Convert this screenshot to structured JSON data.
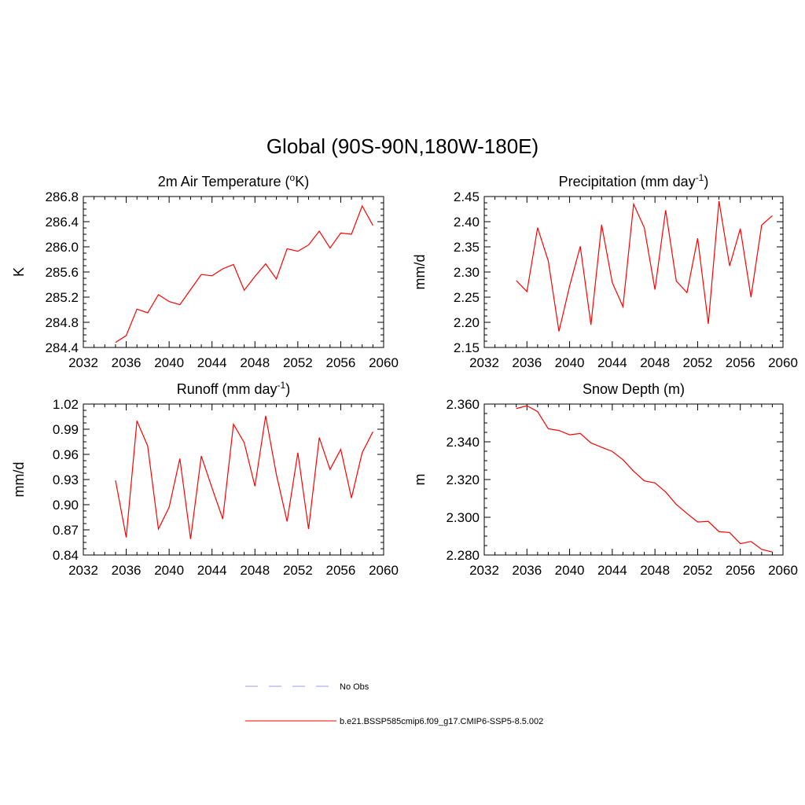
{
  "figure": {
    "title": "Global (90S-90N,180W-180E)"
  },
  "colors": {
    "model_line": "#ff0000",
    "obs_line": "#9999ee",
    "axis": "#000000",
    "background": "#ffffff"
  },
  "legend": {
    "placement": "bottom-center",
    "entries": [
      {
        "label": "No Obs",
        "style": "dashed",
        "color": "#9999ee"
      },
      {
        "label": "b.e21.BSSP585cmip6.f09_g17.CMIP6-SSP5-8.5.002",
        "style": "solid",
        "color": "#ff0000"
      }
    ]
  },
  "chart_data": [
    {
      "type": "line",
      "title": "2m Air Temperature (°K)",
      "title_parts": {
        "pre": "2m Air Temperature (",
        "sup": "o",
        "post": "K)"
      },
      "ylabel": "K",
      "xlim": [
        2032,
        2060
      ],
      "ylim": [
        284.4,
        286.8
      ],
      "xticks": [
        2032,
        2036,
        2040,
        2044,
        2048,
        2052,
        2056,
        2060
      ],
      "xticklabels": [
        "2032",
        "2036",
        "2040",
        "2044",
        "2048",
        "2052",
        "2056",
        "2060"
      ],
      "yticks": [
        284.4,
        284.8,
        285.2,
        285.6,
        286.0,
        286.4,
        286.8
      ],
      "yticklabels": [
        "284.4",
        "284.8",
        "285.2",
        "285.6",
        "286.0",
        "286.4",
        "286.8"
      ],
      "grid": false,
      "series": [
        {
          "color": "#ff0000",
          "x": [
            2035,
            2036,
            2037,
            2038,
            2039,
            2040,
            2041,
            2042,
            2043,
            2044,
            2045,
            2046,
            2047,
            2048,
            2049,
            2050,
            2051,
            2052,
            2053,
            2054,
            2055,
            2056,
            2057,
            2058,
            2059
          ],
          "y": [
            284.48,
            284.59,
            285.01,
            284.95,
            285.24,
            285.13,
            285.08,
            285.32,
            285.56,
            285.54,
            285.65,
            285.72,
            285.31,
            285.53,
            285.73,
            285.49,
            285.97,
            285.93,
            286.03,
            286.25,
            285.98,
            286.22,
            286.2,
            286.65,
            286.34
          ]
        }
      ]
    },
    {
      "type": "line",
      "title": "Precipitation (mm day⁻¹)",
      "title_parts": {
        "pre": "Precipitation (mm day",
        "sup": "-1",
        "post": ")"
      },
      "ylabel": "mm/d",
      "xlim": [
        2032,
        2060
      ],
      "ylim": [
        2.15,
        2.45
      ],
      "xticks": [
        2032,
        2036,
        2040,
        2044,
        2048,
        2052,
        2056,
        2060
      ],
      "xticklabels": [
        "2032",
        "2036",
        "2040",
        "2044",
        "2048",
        "2052",
        "2056",
        "2060"
      ],
      "yticks": [
        2.15,
        2.2,
        2.25,
        2.3,
        2.35,
        2.4,
        2.45
      ],
      "yticklabels": [
        "2.15",
        "2.20",
        "2.25",
        "2.30",
        "2.35",
        "2.40",
        "2.45"
      ],
      "grid": false,
      "series": [
        {
          "color": "#ff0000",
          "x": [
            2035,
            2036,
            2037,
            2038,
            2039,
            2040,
            2041,
            2042,
            2043,
            2044,
            2045,
            2046,
            2047,
            2048,
            2049,
            2050,
            2051,
            2052,
            2053,
            2054,
            2055,
            2056,
            2057,
            2058,
            2059
          ],
          "y": [
            2.283,
            2.261,
            2.388,
            2.322,
            2.182,
            2.272,
            2.351,
            2.195,
            2.394,
            2.279,
            2.231,
            2.435,
            2.388,
            2.265,
            2.423,
            2.282,
            2.259,
            2.367,
            2.197,
            2.441,
            2.312,
            2.386,
            2.25,
            2.393,
            2.412
          ]
        }
      ]
    },
    {
      "type": "line",
      "title": "Runoff (mm day⁻¹)",
      "title_parts": {
        "pre": "Runoff (mm day",
        "sup": "-1",
        "post": ")"
      },
      "ylabel": "mm/d",
      "xlim": [
        2032,
        2060
      ],
      "ylim": [
        0.84,
        1.02
      ],
      "xticks": [
        2032,
        2036,
        2040,
        2044,
        2048,
        2052,
        2056,
        2060
      ],
      "xticklabels": [
        "2032",
        "2036",
        "2040",
        "2044",
        "2048",
        "2052",
        "2056",
        "2060"
      ],
      "yticks": [
        0.84,
        0.87,
        0.9,
        0.93,
        0.96,
        0.99,
        1.02
      ],
      "yticklabels": [
        "0.84",
        "0.87",
        "0.90",
        "0.93",
        "0.96",
        "0.99",
        "1.02"
      ],
      "grid": false,
      "series": [
        {
          "color": "#ff0000",
          "x": [
            2035,
            2036,
            2037,
            2038,
            2039,
            2040,
            2041,
            2042,
            2043,
            2044,
            2045,
            2046,
            2047,
            2048,
            2049,
            2050,
            2051,
            2052,
            2053,
            2054,
            2055,
            2056,
            2057,
            2058,
            2059
          ],
          "y": [
            0.929,
            0.861,
            1.0,
            0.97,
            0.871,
            0.897,
            0.955,
            0.859,
            0.958,
            0.92,
            0.883,
            0.996,
            0.974,
            0.922,
            1.006,
            0.936,
            0.88,
            0.962,
            0.871,
            0.98,
            0.942,
            0.966,
            0.908,
            0.962,
            0.987
          ]
        }
      ]
    },
    {
      "type": "line",
      "title": "Snow Depth (m)",
      "title_parts": {
        "pre": "Snow Depth (m)",
        "sup": "",
        "post": ""
      },
      "ylabel": "m",
      "xlim": [
        2032,
        2060
      ],
      "ylim": [
        2.28,
        2.36
      ],
      "xticks": [
        2032,
        2036,
        2040,
        2044,
        2048,
        2052,
        2056,
        2060
      ],
      "xticklabels": [
        "2032",
        "2036",
        "2040",
        "2044",
        "2048",
        "2052",
        "2056",
        "2060"
      ],
      "yticks": [
        2.28,
        2.3,
        2.32,
        2.34,
        2.36
      ],
      "yticklabels": [
        "2.280",
        "2.300",
        "2.320",
        "2.340",
        "2.360"
      ],
      "grid": false,
      "series": [
        {
          "color": "#ff0000",
          "x": [
            2035,
            2036,
            2037,
            2038,
            2039,
            2040,
            2041,
            2042,
            2043,
            2044,
            2045,
            2046,
            2047,
            2048,
            2049,
            2050,
            2051,
            2052,
            2053,
            2054,
            2055,
            2056,
            2057,
            2058,
            2059
          ],
          "y": [
            2.3576,
            2.3591,
            2.356,
            2.3469,
            2.346,
            2.3437,
            2.3444,
            2.3394,
            2.3371,
            2.3349,
            2.3305,
            2.3244,
            2.3193,
            2.3182,
            2.3134,
            2.3068,
            2.302,
            2.2975,
            2.2978,
            2.2924,
            2.2919,
            2.286,
            2.2872,
            2.283,
            2.2816
          ]
        }
      ]
    }
  ]
}
